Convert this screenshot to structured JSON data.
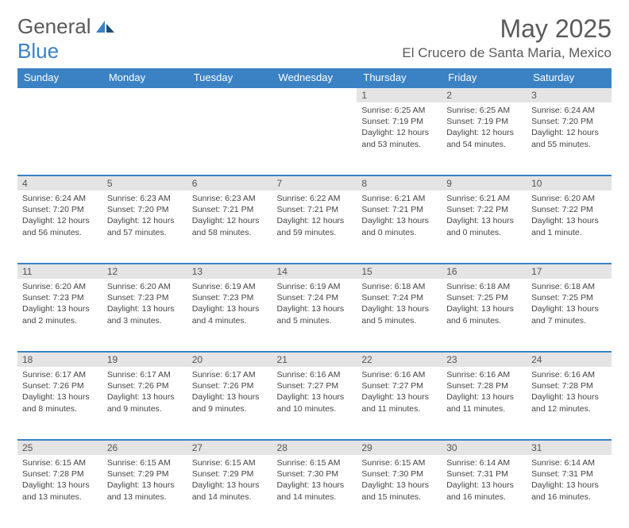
{
  "brand": {
    "part1": "General",
    "part2": "Blue"
  },
  "title": "May 2025",
  "location": "El Crucero de Santa Maria, Mexico",
  "colors": {
    "header_bg": "#3b82c4",
    "header_text": "#ffffff",
    "daynum_bg": "#e4e4e4",
    "border_top": "#3b82c4",
    "text": "#444444",
    "brand_gray": "#5a5a5a",
    "brand_blue": "#3b82c4"
  },
  "weekdays": [
    "Sunday",
    "Monday",
    "Tuesday",
    "Wednesday",
    "Thursday",
    "Friday",
    "Saturday"
  ],
  "weeks": [
    [
      null,
      null,
      null,
      null,
      {
        "n": "1",
        "sr": "6:25 AM",
        "ss": "7:19 PM",
        "dl": "12 hours and 53 minutes."
      },
      {
        "n": "2",
        "sr": "6:25 AM",
        "ss": "7:19 PM",
        "dl": "12 hours and 54 minutes."
      },
      {
        "n": "3",
        "sr": "6:24 AM",
        "ss": "7:20 PM",
        "dl": "12 hours and 55 minutes."
      }
    ],
    [
      {
        "n": "4",
        "sr": "6:24 AM",
        "ss": "7:20 PM",
        "dl": "12 hours and 56 minutes."
      },
      {
        "n": "5",
        "sr": "6:23 AM",
        "ss": "7:20 PM",
        "dl": "12 hours and 57 minutes."
      },
      {
        "n": "6",
        "sr": "6:23 AM",
        "ss": "7:21 PM",
        "dl": "12 hours and 58 minutes."
      },
      {
        "n": "7",
        "sr": "6:22 AM",
        "ss": "7:21 PM",
        "dl": "12 hours and 59 minutes."
      },
      {
        "n": "8",
        "sr": "6:21 AM",
        "ss": "7:21 PM",
        "dl": "13 hours and 0 minutes."
      },
      {
        "n": "9",
        "sr": "6:21 AM",
        "ss": "7:22 PM",
        "dl": "13 hours and 0 minutes."
      },
      {
        "n": "10",
        "sr": "6:20 AM",
        "ss": "7:22 PM",
        "dl": "13 hours and 1 minute."
      }
    ],
    [
      {
        "n": "11",
        "sr": "6:20 AM",
        "ss": "7:23 PM",
        "dl": "13 hours and 2 minutes."
      },
      {
        "n": "12",
        "sr": "6:20 AM",
        "ss": "7:23 PM",
        "dl": "13 hours and 3 minutes."
      },
      {
        "n": "13",
        "sr": "6:19 AM",
        "ss": "7:23 PM",
        "dl": "13 hours and 4 minutes."
      },
      {
        "n": "14",
        "sr": "6:19 AM",
        "ss": "7:24 PM",
        "dl": "13 hours and 5 minutes."
      },
      {
        "n": "15",
        "sr": "6:18 AM",
        "ss": "7:24 PM",
        "dl": "13 hours and 5 minutes."
      },
      {
        "n": "16",
        "sr": "6:18 AM",
        "ss": "7:25 PM",
        "dl": "13 hours and 6 minutes."
      },
      {
        "n": "17",
        "sr": "6:18 AM",
        "ss": "7:25 PM",
        "dl": "13 hours and 7 minutes."
      }
    ],
    [
      {
        "n": "18",
        "sr": "6:17 AM",
        "ss": "7:26 PM",
        "dl": "13 hours and 8 minutes."
      },
      {
        "n": "19",
        "sr": "6:17 AM",
        "ss": "7:26 PM",
        "dl": "13 hours and 9 minutes."
      },
      {
        "n": "20",
        "sr": "6:17 AM",
        "ss": "7:26 PM",
        "dl": "13 hours and 9 minutes."
      },
      {
        "n": "21",
        "sr": "6:16 AM",
        "ss": "7:27 PM",
        "dl": "13 hours and 10 minutes."
      },
      {
        "n": "22",
        "sr": "6:16 AM",
        "ss": "7:27 PM",
        "dl": "13 hours and 11 minutes."
      },
      {
        "n": "23",
        "sr": "6:16 AM",
        "ss": "7:28 PM",
        "dl": "13 hours and 11 minutes."
      },
      {
        "n": "24",
        "sr": "6:16 AM",
        "ss": "7:28 PM",
        "dl": "13 hours and 12 minutes."
      }
    ],
    [
      {
        "n": "25",
        "sr": "6:15 AM",
        "ss": "7:28 PM",
        "dl": "13 hours and 13 minutes."
      },
      {
        "n": "26",
        "sr": "6:15 AM",
        "ss": "7:29 PM",
        "dl": "13 hours and 13 minutes."
      },
      {
        "n": "27",
        "sr": "6:15 AM",
        "ss": "7:29 PM",
        "dl": "13 hours and 14 minutes."
      },
      {
        "n": "28",
        "sr": "6:15 AM",
        "ss": "7:30 PM",
        "dl": "13 hours and 14 minutes."
      },
      {
        "n": "29",
        "sr": "6:15 AM",
        "ss": "7:30 PM",
        "dl": "13 hours and 15 minutes."
      },
      {
        "n": "30",
        "sr": "6:14 AM",
        "ss": "7:31 PM",
        "dl": "13 hours and 16 minutes."
      },
      {
        "n": "31",
        "sr": "6:14 AM",
        "ss": "7:31 PM",
        "dl": "13 hours and 16 minutes."
      }
    ]
  ],
  "labels": {
    "sunrise": "Sunrise:",
    "sunset": "Sunset:",
    "daylight": "Daylight:"
  }
}
